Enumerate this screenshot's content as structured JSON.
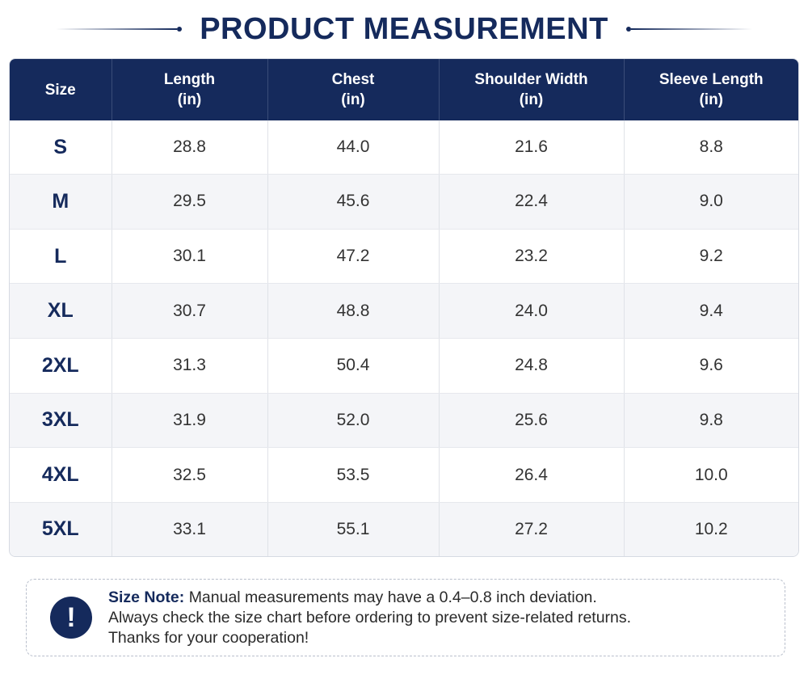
{
  "title": "PRODUCT MEASUREMENT",
  "table": {
    "headers": [
      {
        "line1": "Size",
        "line2": ""
      },
      {
        "line1": "Length",
        "line2": "(in)"
      },
      {
        "line1": "Chest",
        "line2": "(in)"
      },
      {
        "line1": "Shoulder Width",
        "line2": "(in)"
      },
      {
        "line1": "Sleeve Length",
        "line2": "(in)"
      }
    ],
    "rows": [
      [
        "S",
        "28.8",
        "44.0",
        "21.6",
        "8.8"
      ],
      [
        "M",
        "29.5",
        "45.6",
        "22.4",
        "9.0"
      ],
      [
        "L",
        "30.1",
        "47.2",
        "23.2",
        "9.2"
      ],
      [
        "XL",
        "30.7",
        "48.8",
        "24.0",
        "9.4"
      ],
      [
        "2XL",
        "31.3",
        "50.4",
        "24.8",
        "9.6"
      ],
      [
        "3XL",
        "31.9",
        "52.0",
        "25.6",
        "9.8"
      ],
      [
        "4XL",
        "32.5",
        "53.5",
        "26.4",
        "10.0"
      ],
      [
        "5XL",
        "33.1",
        "55.1",
        "27.2",
        "10.2"
      ]
    ]
  },
  "note": {
    "icon": "exclamation-icon",
    "icon_glyph": "!",
    "label": "Size Note:",
    "line1": "Manual measurements may have a 0.4–0.8 inch deviation.",
    "line2": "Always check the size chart before ordering to prevent size-related returns.",
    "line3": "Thanks for your cooperation!"
  },
  "colors": {
    "navy": "#152a5c",
    "row_alt": "#f4f5f8",
    "text": "#333333"
  }
}
